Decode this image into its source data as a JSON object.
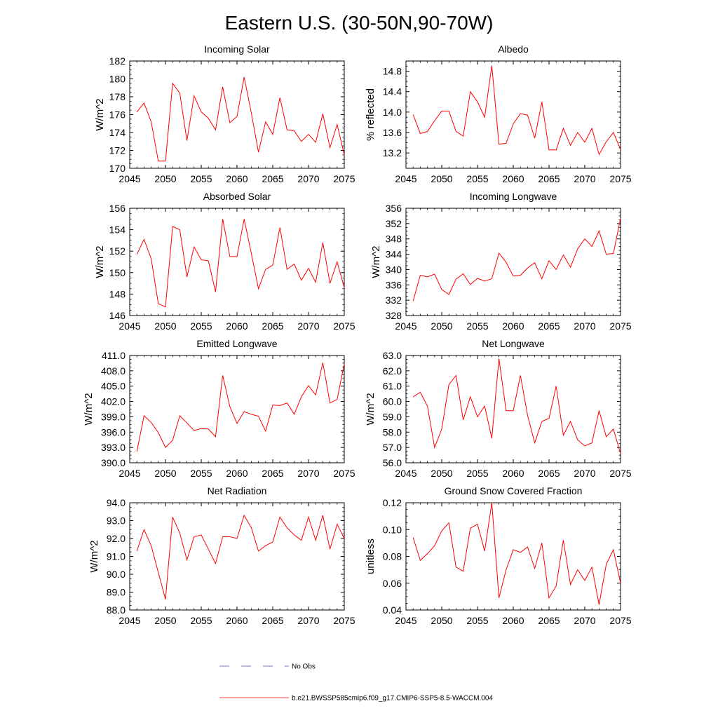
{
  "figure": {
    "title": "Eastern U.S. (30-50N,90-70W)"
  },
  "legend": {
    "items": [
      {
        "label": "No Obs",
        "color": "#4a4ad0",
        "style": "dashed"
      },
      {
        "label": "b.e21.BWSSP585cmip6.f09_g17.CMIP6-SSP5-8.5-WACCM.004",
        "color": "#ff0000",
        "style": "solid"
      }
    ]
  },
  "chart_data": [
    {
      "type": "line",
      "title": "Incoming Solar",
      "ylabel": "W/m^2",
      "xlim": [
        2045,
        2075
      ],
      "ylim": [
        170,
        182
      ],
      "xticks": [
        2045,
        2050,
        2055,
        2060,
        2065,
        2070,
        2075
      ],
      "yticks": [
        170,
        172,
        174,
        176,
        178,
        180,
        182
      ],
      "ytick_labels": [
        "170",
        "172",
        "174",
        "176",
        "178",
        "180",
        "182"
      ],
      "color": "#ff0000",
      "x": [
        2046,
        2047,
        2048,
        2049,
        2050,
        2051,
        2052,
        2053,
        2054,
        2055,
        2056,
        2057,
        2058,
        2059,
        2060,
        2061,
        2062,
        2063,
        2064,
        2065,
        2066,
        2067,
        2068,
        2069,
        2070,
        2071,
        2072,
        2073,
        2074,
        2075
      ],
      "values": [
        176.3,
        177.3,
        175.2,
        170.8,
        170.8,
        179.5,
        178.4,
        173.1,
        178.1,
        176.3,
        175.6,
        174.3,
        179.1,
        175.1,
        175.8,
        180.2,
        176.2,
        171.8,
        175.2,
        173.8,
        177.9,
        174.3,
        174.2,
        173.0,
        173.8,
        172.9,
        176.1,
        172.3,
        174.9,
        171.5
      ]
    },
    {
      "type": "line",
      "title": "Albedo",
      "ylabel": "% reflected",
      "xlim": [
        2045,
        2075
      ],
      "ylim": [
        12.9,
        15.0
      ],
      "xticks": [
        2045,
        2050,
        2055,
        2060,
        2065,
        2070,
        2075
      ],
      "yticks": [
        13.2,
        13.6,
        14.0,
        14.4,
        14.8
      ],
      "ytick_labels": [
        "13.2",
        "13.6",
        "14.0",
        "14.4",
        "14.8"
      ],
      "color": "#ff0000",
      "x": [
        2046,
        2047,
        2048,
        2049,
        2050,
        2051,
        2052,
        2053,
        2054,
        2055,
        2056,
        2057,
        2058,
        2059,
        2060,
        2061,
        2062,
        2063,
        2064,
        2065,
        2066,
        2067,
        2068,
        2069,
        2070,
        2071,
        2072,
        2073,
        2074,
        2075
      ],
      "values": [
        13.95,
        13.58,
        13.62,
        13.83,
        14.02,
        14.02,
        13.62,
        13.53,
        14.4,
        14.2,
        13.9,
        14.91,
        13.37,
        13.39,
        13.77,
        13.97,
        13.94,
        13.49,
        14.2,
        13.26,
        13.26,
        13.68,
        13.35,
        13.6,
        13.41,
        13.68,
        13.17,
        13.42,
        13.6,
        13.27
      ]
    },
    {
      "type": "line",
      "title": "Absorbed Solar",
      "ylabel": "W/m^2",
      "xlim": [
        2045,
        2075
      ],
      "ylim": [
        146,
        156
      ],
      "xticks": [
        2045,
        2050,
        2055,
        2060,
        2065,
        2070,
        2075
      ],
      "yticks": [
        146,
        148,
        150,
        152,
        154,
        156
      ],
      "ytick_labels": [
        "146",
        "148",
        "150",
        "152",
        "154",
        "156"
      ],
      "color": "#ff0000",
      "x": [
        2046,
        2047,
        2048,
        2049,
        2050,
        2051,
        2052,
        2053,
        2054,
        2055,
        2056,
        2057,
        2058,
        2059,
        2060,
        2061,
        2062,
        2063,
        2064,
        2065,
        2066,
        2067,
        2068,
        2069,
        2070,
        2071,
        2072,
        2073,
        2074,
        2075
      ],
      "values": [
        151.7,
        153.1,
        151.3,
        147.1,
        146.8,
        154.3,
        154.0,
        149.6,
        152.4,
        151.2,
        151.1,
        148.2,
        155.0,
        151.5,
        151.5,
        155.0,
        151.8,
        148.5,
        150.3,
        150.7,
        154.2,
        150.3,
        150.8,
        149.3,
        150.4,
        149.1,
        152.8,
        149.0,
        151.0,
        148.6
      ]
    },
    {
      "type": "line",
      "title": "Incoming Longwave",
      "ylabel": "W/m^2",
      "xlim": [
        2045,
        2075
      ],
      "ylim": [
        328,
        356
      ],
      "xticks": [
        2045,
        2050,
        2055,
        2060,
        2065,
        2070,
        2075
      ],
      "yticks": [
        328,
        332,
        336,
        340,
        344,
        348,
        352,
        356
      ],
      "ytick_labels": [
        "328",
        "332",
        "336",
        "340",
        "344",
        "348",
        "352",
        "356"
      ],
      "color": "#ff0000",
      "x": [
        2046,
        2047,
        2048,
        2049,
        2050,
        2051,
        2052,
        2053,
        2054,
        2055,
        2056,
        2057,
        2058,
        2059,
        2060,
        2061,
        2062,
        2063,
        2064,
        2065,
        2066,
        2067,
        2068,
        2069,
        2070,
        2071,
        2072,
        2073,
        2074,
        2075
      ],
      "values": [
        331.8,
        338.5,
        338.1,
        338.8,
        334.8,
        333.5,
        337.5,
        338.9,
        336.1,
        337.7,
        337.0,
        337.6,
        344.3,
        341.9,
        338.3,
        338.5,
        340.4,
        341.8,
        337.6,
        342.3,
        340.0,
        343.8,
        340.6,
        345.4,
        348.0,
        346.0,
        350.1,
        344.0,
        344.2,
        353.4
      ]
    },
    {
      "type": "line",
      "title": "Emitted Longwave",
      "ylabel": "W/m^2",
      "xlim": [
        2045,
        2075
      ],
      "ylim": [
        390,
        411
      ],
      "xticks": [
        2045,
        2050,
        2055,
        2060,
        2065,
        2070,
        2075
      ],
      "yticks": [
        390,
        393,
        396,
        399,
        402,
        405,
        408,
        411
      ],
      "ytick_labels": [
        "390.0",
        "393.0",
        "396.0",
        "399.0",
        "402.0",
        "405.0",
        "408.0",
        "411.0"
      ],
      "color": "#ff0000",
      "x": [
        2046,
        2047,
        2048,
        2049,
        2050,
        2051,
        2052,
        2053,
        2054,
        2055,
        2056,
        2057,
        2058,
        2059,
        2060,
        2061,
        2062,
        2063,
        2064,
        2065,
        2066,
        2067,
        2068,
        2069,
        2070,
        2071,
        2072,
        2073,
        2074,
        2075
      ],
      "values": [
        392.2,
        399.2,
        397.9,
        395.9,
        393.0,
        394.4,
        399.2,
        397.8,
        396.3,
        396.7,
        396.6,
        395.1,
        407.1,
        401.0,
        397.7,
        400.0,
        399.5,
        399.1,
        396.2,
        401.3,
        401.2,
        401.7,
        399.5,
        402.9,
        405.1,
        403.3,
        409.6,
        401.7,
        402.4,
        409.4
      ]
    },
    {
      "type": "line",
      "title": "Net Longwave",
      "ylabel": "W/m^2",
      "xlim": [
        2045,
        2075
      ],
      "ylim": [
        56,
        63
      ],
      "xticks": [
        2045,
        2050,
        2055,
        2060,
        2065,
        2070,
        2075
      ],
      "yticks": [
        56,
        57,
        58,
        59,
        60,
        61,
        62,
        63
      ],
      "ytick_labels": [
        "56.0",
        "57.0",
        "58.0",
        "59.0",
        "60.0",
        "61.0",
        "62.0",
        "63.0"
      ],
      "color": "#ff0000",
      "x": [
        2046,
        2047,
        2048,
        2049,
        2050,
        2051,
        2052,
        2053,
        2054,
        2055,
        2056,
        2057,
        2058,
        2059,
        2060,
        2061,
        2062,
        2063,
        2064,
        2065,
        2066,
        2067,
        2068,
        2069,
        2070,
        2071,
        2072,
        2073,
        2074,
        2075
      ],
      "values": [
        60.3,
        60.6,
        59.7,
        57.0,
        58.2,
        61.1,
        61.7,
        58.8,
        60.3,
        59.0,
        59.7,
        57.6,
        62.8,
        59.4,
        59.4,
        61.7,
        59.1,
        57.3,
        58.7,
        58.9,
        61.0,
        57.8,
        58.7,
        57.5,
        57.1,
        57.3,
        59.4,
        57.7,
        58.2,
        56.6
      ]
    },
    {
      "type": "line",
      "title": "Net Radiation",
      "ylabel": "W/m^2",
      "xlim": [
        2045,
        2075
      ],
      "ylim": [
        88,
        94
      ],
      "xticks": [
        2045,
        2050,
        2055,
        2060,
        2065,
        2070,
        2075
      ],
      "yticks": [
        88,
        89,
        90,
        91,
        92,
        93,
        94
      ],
      "ytick_labels": [
        "88.0",
        "89.0",
        "90.0",
        "91.0",
        "92.0",
        "93.0",
        "94.0"
      ],
      "color": "#ff0000",
      "x": [
        2046,
        2047,
        2048,
        2049,
        2050,
        2051,
        2052,
        2053,
        2054,
        2055,
        2056,
        2057,
        2058,
        2059,
        2060,
        2061,
        2062,
        2063,
        2064,
        2065,
        2066,
        2067,
        2068,
        2069,
        2070,
        2071,
        2072,
        2073,
        2074,
        2075
      ],
      "values": [
        91.3,
        92.5,
        91.6,
        90.1,
        88.6,
        93.2,
        92.3,
        90.8,
        92.1,
        92.2,
        91.4,
        90.6,
        92.1,
        92.1,
        92.0,
        93.3,
        92.6,
        91.3,
        91.6,
        91.8,
        93.2,
        92.6,
        92.2,
        91.9,
        93.2,
        91.9,
        93.3,
        91.4,
        92.8,
        92.0
      ]
    },
    {
      "type": "line",
      "title": "Ground Snow Covered Fraction",
      "ylabel": "unitless",
      "xlim": [
        2045,
        2075
      ],
      "ylim": [
        0.04,
        0.12
      ],
      "xticks": [
        2045,
        2050,
        2055,
        2060,
        2065,
        2070,
        2075
      ],
      "yticks": [
        0.04,
        0.06,
        0.08,
        0.1,
        0.12
      ],
      "ytick_labels": [
        "0.04",
        "0.06",
        "0.08",
        "0.10",
        "0.12"
      ],
      "color": "#ff0000",
      "x": [
        2046,
        2047,
        2048,
        2049,
        2050,
        2051,
        2052,
        2053,
        2054,
        2055,
        2056,
        2057,
        2058,
        2059,
        2060,
        2061,
        2062,
        2063,
        2064,
        2065,
        2066,
        2067,
        2068,
        2069,
        2070,
        2071,
        2072,
        2073,
        2074,
        2075
      ],
      "values": [
        0.094,
        0.077,
        0.082,
        0.088,
        0.099,
        0.105,
        0.072,
        0.069,
        0.101,
        0.104,
        0.084,
        0.12,
        0.049,
        0.07,
        0.085,
        0.083,
        0.087,
        0.071,
        0.09,
        0.049,
        0.058,
        0.092,
        0.059,
        0.07,
        0.062,
        0.072,
        0.044,
        0.074,
        0.085,
        0.06
      ]
    }
  ]
}
